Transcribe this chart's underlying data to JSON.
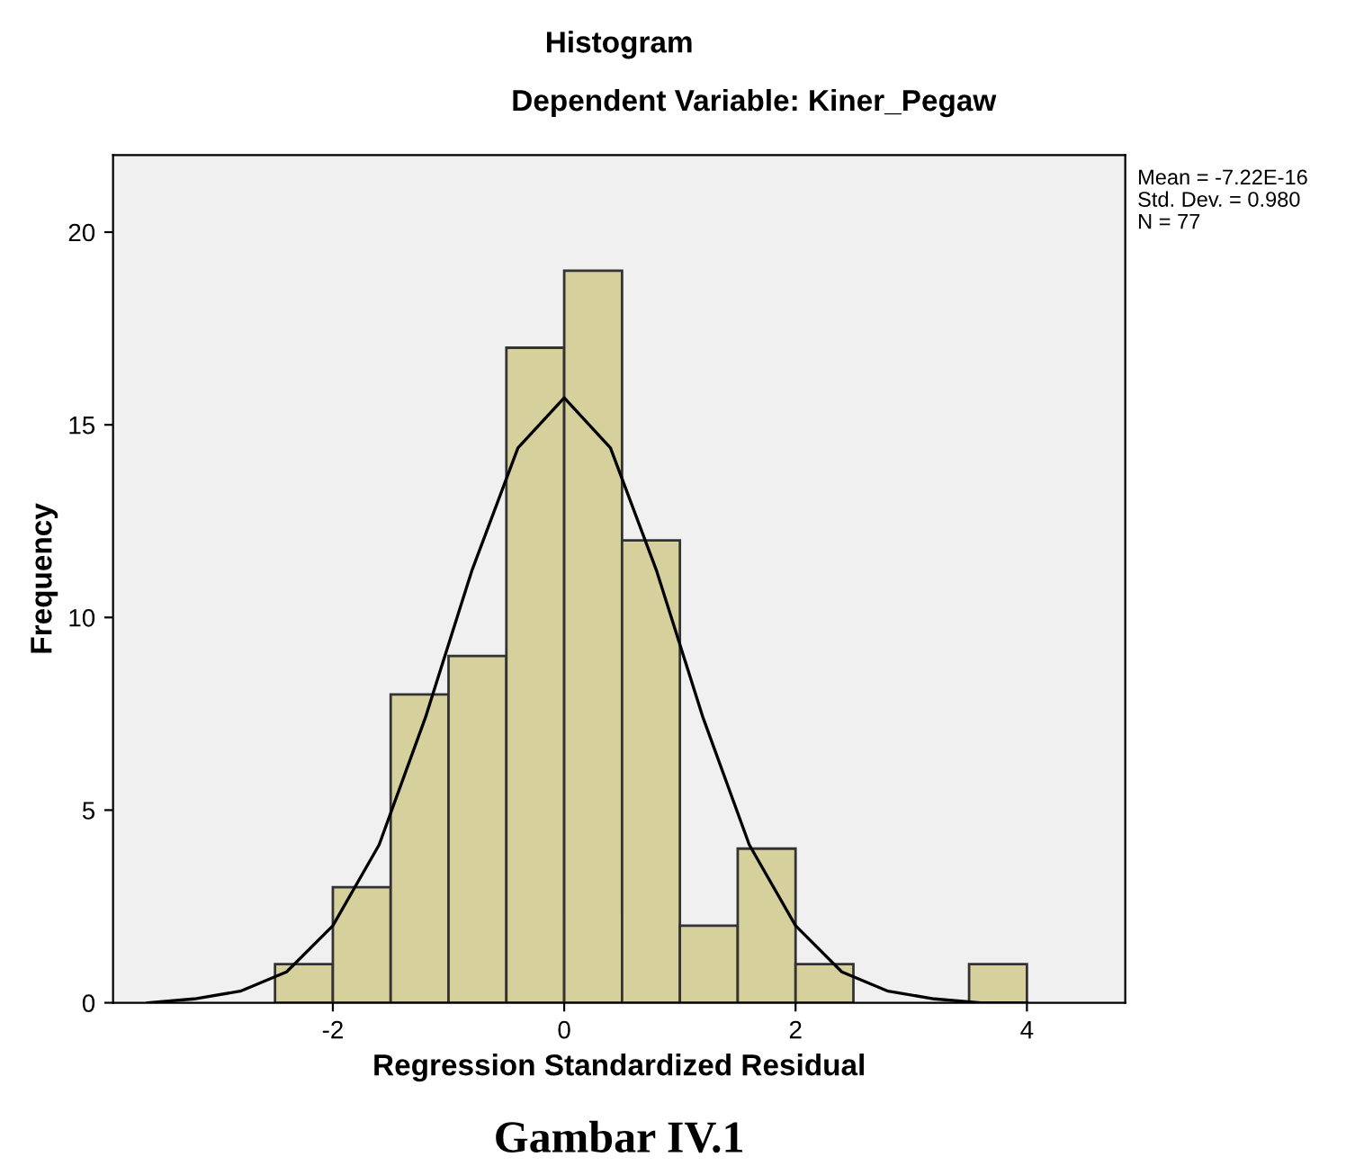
{
  "chart_data": {
    "type": "histogram",
    "title": "Histogram",
    "subtitle": "Dependent Variable: Kiner_Pegaw",
    "xlabel": "Regression Standardized Residual",
    "ylabel": "Frequency",
    "bins": [
      -2.5,
      -2.0,
      -1.5,
      -1.0,
      -0.5,
      0.0,
      0.5,
      1.0,
      1.5,
      2.0,
      2.5,
      3.0,
      3.5,
      4.0
    ],
    "values": [
      1,
      3,
      8,
      9,
      17,
      19,
      12,
      2,
      4,
      1,
      0,
      0,
      1
    ],
    "color": "#d6d09c",
    "series": [
      {
        "type": "line",
        "color": "#000000",
        "x": [
          -3.6,
          -3.2,
          -2.8,
          -2.4,
          -2.0,
          -1.6,
          -1.2,
          -0.8,
          -0.4,
          0.0,
          0.4,
          0.8,
          1.2,
          1.6,
          2.0,
          2.4,
          2.8,
          3.2,
          3.6,
          4.0
        ],
        "values": [
          0.0,
          0.1,
          0.3,
          0.8,
          2.0,
          4.1,
          7.4,
          11.2,
          14.4,
          15.7,
          14.4,
          11.2,
          7.4,
          4.1,
          2.0,
          0.8,
          0.3,
          0.1,
          0.0,
          0.0
        ]
      }
    ],
    "xlim": [
      -3.9,
      4.85
    ],
    "ylim": [
      0,
      22
    ],
    "xticks": [
      -2,
      0,
      2,
      4
    ],
    "yticks": [
      0,
      5,
      10,
      15,
      20
    ],
    "grid": false,
    "legend": false,
    "annotations": [
      "Mean = -7.22E-16",
      "Std. Dev. = 0.980",
      "N = 77",
      "Gambar IV.1"
    ]
  }
}
